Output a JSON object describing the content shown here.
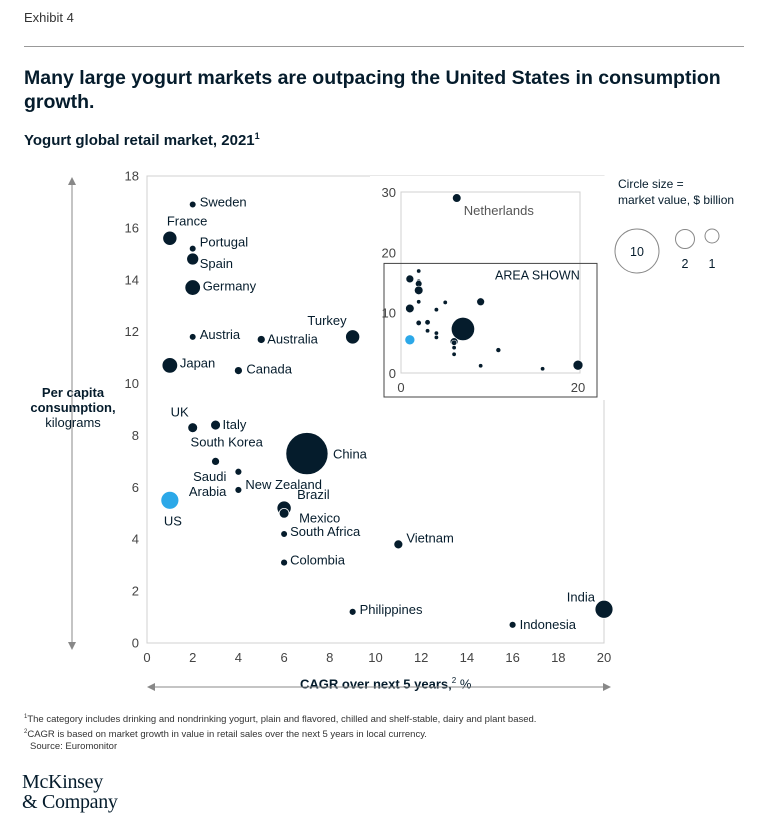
{
  "header": {
    "exhibit": "Exhibit 4",
    "headline": "Many large yogurt markets are outpacing the United States in consumption growth.",
    "subtitle": "Yogurt global retail market, 2021",
    "subtitle_note": "1"
  },
  "axes": {
    "ylabel_bold": "Per capita consumption,",
    "ylabel_rest": "kilograms",
    "xlabel_bold": "CAGR over next 5 years,",
    "xlabel_note": "2",
    "xlabel_unit": "%"
  },
  "legend": {
    "title_line1": "Circle size =",
    "title_line2": "market value, $ billion",
    "items": [
      "10",
      "2",
      "1"
    ]
  },
  "notes": {
    "note1": "The category includes drinking and nondrinking yogurt, plain and flavored, chilled and shelf-stable, dairy and plant based.",
    "note2": "CAGR is based on market growth in value in retail sales over the next 5 years in local currency.",
    "source": "Source: Euromonitor"
  },
  "logo": {
    "line1": "McKinsey",
    "line2": "& Company"
  },
  "colors": {
    "navy": "#051c2c",
    "highlight": "#2ca8e8",
    "grid_border": "#d0d0d0"
  },
  "chart_data": {
    "type": "scatter",
    "title": "Yogurt global retail market, 2021",
    "xlabel": "CAGR over next 5 years, %",
    "ylabel": "Per capita consumption, kilograms",
    "xlim": [
      0,
      20
    ],
    "ylim": [
      0,
      18
    ],
    "xticks": [
      0,
      2,
      4,
      6,
      8,
      10,
      12,
      14,
      16,
      18,
      20
    ],
    "yticks": [
      0,
      2,
      4,
      6,
      8,
      10,
      12,
      14,
      16,
      18
    ],
    "size_meaning": "market value, $ billion",
    "points": [
      {
        "name": "Sweden",
        "x": 2,
        "y": 16.9,
        "size": 0.5
      },
      {
        "name": "France",
        "x": 1,
        "y": 15.6,
        "size": 2.5
      },
      {
        "name": "Portugal",
        "x": 2,
        "y": 15.2,
        "size": 0.5
      },
      {
        "name": "Spain",
        "x": 2,
        "y": 14.8,
        "size": 1.8
      },
      {
        "name": "Germany",
        "x": 2,
        "y": 13.7,
        "size": 3
      },
      {
        "name": "Austria",
        "x": 2,
        "y": 11.8,
        "size": 0.5
      },
      {
        "name": "Australia",
        "x": 5,
        "y": 11.7,
        "size": 0.8
      },
      {
        "name": "Turkey",
        "x": 9,
        "y": 11.8,
        "size": 2.5
      },
      {
        "name": "Japan",
        "x": 1,
        "y": 10.7,
        "size": 3
      },
      {
        "name": "Canada",
        "x": 4,
        "y": 10.5,
        "size": 0.8
      },
      {
        "name": "UK",
        "x": 2,
        "y": 8.3,
        "size": 1.2
      },
      {
        "name": "Italy",
        "x": 3,
        "y": 8.4,
        "size": 1.2
      },
      {
        "name": "South Korea",
        "x": 3,
        "y": 7,
        "size": 0.8
      },
      {
        "name": "China",
        "x": 7,
        "y": 7.3,
        "size": 22
      },
      {
        "name": "Saudi Arabia",
        "x": 4,
        "y": 6.6,
        "size": 0.6
      },
      {
        "name": "New Zealand",
        "x": 4,
        "y": 5.9,
        "size": 0.6
      },
      {
        "name": "US",
        "x": 1,
        "y": 5.5,
        "size": 4,
        "highlight": true
      },
      {
        "name": "Brazil",
        "x": 6,
        "y": 5.2,
        "size": 2.5
      },
      {
        "name": "Mexico",
        "x": 6,
        "y": 5,
        "size": 1.2
      },
      {
        "name": "South Africa",
        "x": 6,
        "y": 4.2,
        "size": 0.5
      },
      {
        "name": "Vietnam",
        "x": 11,
        "y": 3.8,
        "size": 1
      },
      {
        "name": "Colombia",
        "x": 6,
        "y": 3.1,
        "size": 0.6
      },
      {
        "name": "Philippines",
        "x": 9,
        "y": 1.2,
        "size": 0.6
      },
      {
        "name": "India",
        "x": 20,
        "y": 1.3,
        "size": 4
      },
      {
        "name": "Indonesia",
        "x": 16,
        "y": 0.7,
        "size": 0.6
      }
    ],
    "inset": {
      "xlim": [
        0,
        20
      ],
      "ylim": [
        0,
        30
      ],
      "xticks": [
        0,
        20
      ],
      "yticks": [
        0,
        10,
        20,
        30
      ],
      "label": "AREA SHOWN",
      "outlier": {
        "name": "Netherlands",
        "x": 6.3,
        "y": 29,
        "size": 0.6
      }
    }
  }
}
